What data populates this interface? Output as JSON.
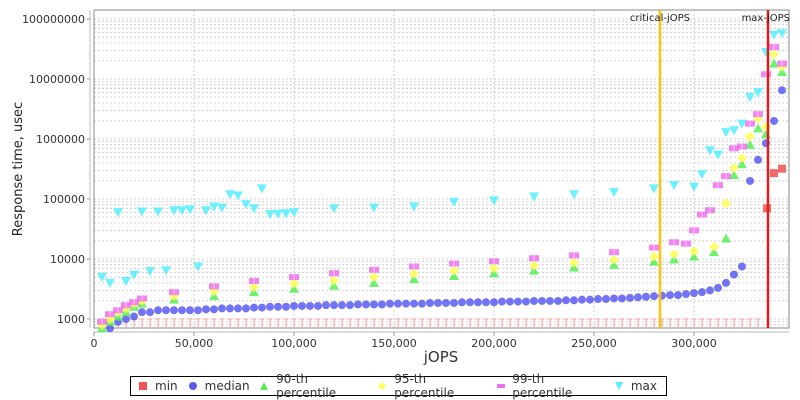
{
  "chart_data": {
    "type": "scatter",
    "title": "",
    "xlabel": "jOPS",
    "ylabel": "Response time, usec",
    "xscale": "linear",
    "yscale": "log",
    "xlim": [
      0,
      346000
    ],
    "ylim": [
      700,
      140000000
    ],
    "x_ticks": [
      "0",
      "50,000",
      "100,000",
      "150,000",
      "200,000",
      "250,000",
      "300,000"
    ],
    "y_ticks": [
      "1000",
      "10000",
      "100000",
      "1000000",
      "10000000",
      "100000000"
    ],
    "grid": true,
    "legend_position": "bottom",
    "annotations": [
      {
        "label": "critical-jOPS",
        "x": 283000,
        "color": "#ffc20e"
      },
      {
        "label": "max-jOPS",
        "x": 337000,
        "color": "#e31a1c"
      }
    ],
    "series": [
      {
        "name": "min",
        "color": "#f0504f",
        "marker": "square",
        "points": [
          [
            336500,
            70000
          ],
          [
            340000,
            270000
          ],
          [
            344000,
            320000
          ]
        ],
        "baseline_note": "min values ~1000 for each step from 4,000 to 330,000 drawn as stems"
      },
      {
        "name": "median",
        "color": "#5a5af5",
        "marker": "circle",
        "x": [
          4000,
          8000,
          12000,
          16000,
          20000,
          24000,
          28000,
          32000,
          36000,
          40000,
          44000,
          48000,
          52000,
          56000,
          60000,
          64000,
          68000,
          72000,
          76000,
          80000,
          84000,
          88000,
          92000,
          96000,
          100000,
          104000,
          108000,
          112000,
          116000,
          120000,
          124000,
          128000,
          132000,
          136000,
          140000,
          144000,
          148000,
          152000,
          156000,
          160000,
          164000,
          168000,
          172000,
          176000,
          180000,
          184000,
          188000,
          192000,
          196000,
          200000,
          204000,
          208000,
          212000,
          216000,
          220000,
          224000,
          228000,
          232000,
          236000,
          240000,
          244000,
          248000,
          252000,
          256000,
          260000,
          264000,
          268000,
          272000,
          276000,
          280000,
          284000,
          288000,
          292000,
          296000,
          300000,
          304000,
          308000,
          312000,
          316000,
          320000,
          324000,
          328000,
          332000,
          336000,
          340000,
          344000
        ],
        "values": [
          600,
          700,
          900,
          1000,
          1100,
          1300,
          1300,
          1400,
          1400,
          1400,
          1400,
          1400,
          1400,
          1450,
          1450,
          1500,
          1500,
          1500,
          1500,
          1550,
          1550,
          1600,
          1600,
          1600,
          1650,
          1650,
          1650,
          1650,
          1700,
          1700,
          1700,
          1700,
          1750,
          1750,
          1750,
          1750,
          1800,
          1800,
          1800,
          1800,
          1800,
          1850,
          1850,
          1850,
          1850,
          1900,
          1900,
          1900,
          1900,
          1900,
          1950,
          1950,
          1950,
          1950,
          2000,
          2000,
          2000,
          2000,
          2050,
          2050,
          2100,
          2100,
          2150,
          2150,
          2200,
          2200,
          2250,
          2300,
          2350,
          2400,
          2450,
          2500,
          2500,
          2600,
          2700,
          2800,
          3000,
          3300,
          4000,
          5500,
          7500,
          200000,
          450000,
          850000,
          2000000,
          6500000
        ]
      },
      {
        "name": "90-th percentile",
        "color": "#55ee55",
        "marker": "triangle-up",
        "x": [
          4000,
          8000,
          12000,
          16000,
          20000,
          24000,
          40000,
          60000,
          80000,
          100000,
          120000,
          140000,
          160000,
          180000,
          200000,
          220000,
          240000,
          260000,
          280000,
          290000,
          300000,
          310000,
          316000,
          320000,
          324000,
          328000,
          332000,
          336000,
          340000,
          344000
        ],
        "values": [
          700,
          900,
          1100,
          1300,
          1600,
          1800,
          2100,
          2400,
          2800,
          3200,
          3600,
          4000,
          4600,
          5200,
          5800,
          6400,
          7200,
          8000,
          9000,
          9800,
          11000,
          13000,
          22000,
          250000,
          380000,
          800000,
          1500000,
          1200000,
          18000000,
          13000000
        ]
      },
      {
        "name": "95-th percentile",
        "color": "#ffff55",
        "marker": "diamond",
        "x": [
          4000,
          8000,
          12000,
          16000,
          20000,
          24000,
          40000,
          60000,
          80000,
          100000,
          120000,
          140000,
          160000,
          180000,
          200000,
          220000,
          240000,
          260000,
          280000,
          290000,
          300000,
          310000,
          316000,
          320000,
          324000,
          328000,
          332000,
          336000,
          340000,
          344000
        ],
        "values": [
          800,
          1000,
          1300,
          1500,
          1800,
          2000,
          2400,
          2900,
          3400,
          3900,
          4400,
          5000,
          5700,
          6400,
          7000,
          7800,
          8700,
          9700,
          11000,
          12000,
          13500,
          16000,
          85000,
          330000,
          480000,
          1100000,
          2200000,
          1600000,
          26000000,
          16000000
        ]
      },
      {
        "name": "99-th percentile",
        "color": "#f070f0",
        "marker": "square-plus",
        "x": [
          4000,
          8000,
          12000,
          16000,
          20000,
          24000,
          40000,
          60000,
          80000,
          100000,
          120000,
          140000,
          160000,
          180000,
          200000,
          220000,
          240000,
          260000,
          280000,
          290000,
          296000,
          300000,
          304000,
          308000,
          312000,
          316000,
          320000,
          324000,
          328000,
          332000,
          336000,
          340000,
          344000
        ],
        "values": [
          900,
          1200,
          1400,
          1700,
          1900,
          2200,
          2800,
          3500,
          4300,
          5000,
          5800,
          6600,
          7500,
          8400,
          9200,
          10300,
          11500,
          13000,
          15500,
          19000,
          18000,
          30000,
          55000,
          65000,
          170000,
          240000,
          700000,
          750000,
          1800000,
          2600000,
          12000000,
          34000000,
          18000000
        ]
      },
      {
        "name": "max",
        "color": "#55eeff",
        "marker": "triangle-down",
        "x": [
          4000,
          8000,
          12000,
          16000,
          20000,
          24000,
          28000,
          32000,
          36000,
          40000,
          44000,
          48000,
          52000,
          56000,
          60000,
          64000,
          68000,
          72000,
          76000,
          80000,
          84000,
          88000,
          92000,
          96000,
          100000,
          120000,
          140000,
          160000,
          180000,
          200000,
          220000,
          240000,
          260000,
          280000,
          290000,
          300000,
          304000,
          308000,
          312000,
          316000,
          320000,
          324000,
          328000,
          332000,
          336000,
          340000,
          344000
        ],
        "values": [
          5000,
          4000,
          60000,
          4300,
          5500,
          62000,
          6300,
          62000,
          6500,
          65000,
          65000,
          67000,
          7500,
          65000,
          75000,
          72000,
          120000,
          115000,
          82000,
          70000,
          150000,
          56000,
          57000,
          58000,
          60000,
          70000,
          72000,
          75000,
          90000,
          95000,
          110000,
          120000,
          130000,
          150000,
          170000,
          160000,
          260000,
          650000,
          550000,
          1300000,
          1400000,
          1800000,
          5000000,
          6000000,
          28000000,
          55000000,
          58000000
        ]
      }
    ]
  },
  "axes": {
    "ylabel": "Response time, usec",
    "xlabel": "jOPS",
    "y_ticks": [
      "1000",
      "10000",
      "100000",
      "1000000",
      "10000000",
      "100000000"
    ],
    "x_ticks": [
      "0",
      "50,000",
      "100,000",
      "150,000",
      "200,000",
      "250,000",
      "300,000"
    ]
  },
  "markers": {
    "critical": "critical-jOPS",
    "max": "max-jOPS"
  },
  "legend": {
    "items": [
      {
        "label": "min",
        "color": "#f05555"
      },
      {
        "label": "median",
        "color": "#5a5af5"
      },
      {
        "label": "90-th percentile",
        "color": "#55ee55"
      },
      {
        "label": "95-th percentile",
        "color": "#ffff55"
      },
      {
        "label": "99-th percentile",
        "color": "#f070f0"
      },
      {
        "label": "max",
        "color": "#55eeff"
      }
    ]
  }
}
